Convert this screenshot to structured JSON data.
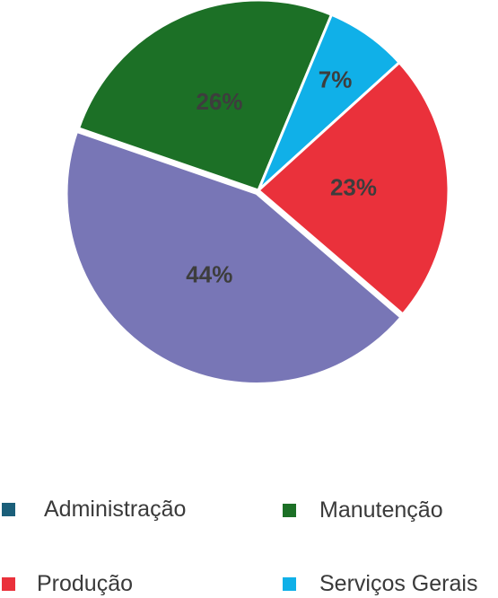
{
  "chart_data": {
    "type": "pie",
    "slices": [
      {
        "label": "Manutenção",
        "value": 26,
        "color": "#1c7026",
        "text": "26%",
        "text_color": "#3d3d3d"
      },
      {
        "label": "Serviços Gerais",
        "value": 7,
        "color": "#10b0e8",
        "text": "7%",
        "text_color": "#3d3d3d"
      },
      {
        "label": "Produção",
        "value": 23,
        "color": "#ea313b",
        "text": "23%",
        "text_color": "#3d3d3d"
      },
      {
        "label": "Administração",
        "value": 44,
        "color": "#7876b6",
        "text": "44%",
        "text_color": "#3d3d3d"
      }
    ],
    "legend": [
      {
        "label": "Administração",
        "color": "#1b5f7a"
      },
      {
        "label": "Manutenção",
        "color": "#1c7026"
      },
      {
        "label": "Produção",
        "color": "#ea313b"
      },
      {
        "label": "Serviços Gerais",
        "color": "#10b0e8"
      }
    ],
    "legend_position": "bottom"
  }
}
